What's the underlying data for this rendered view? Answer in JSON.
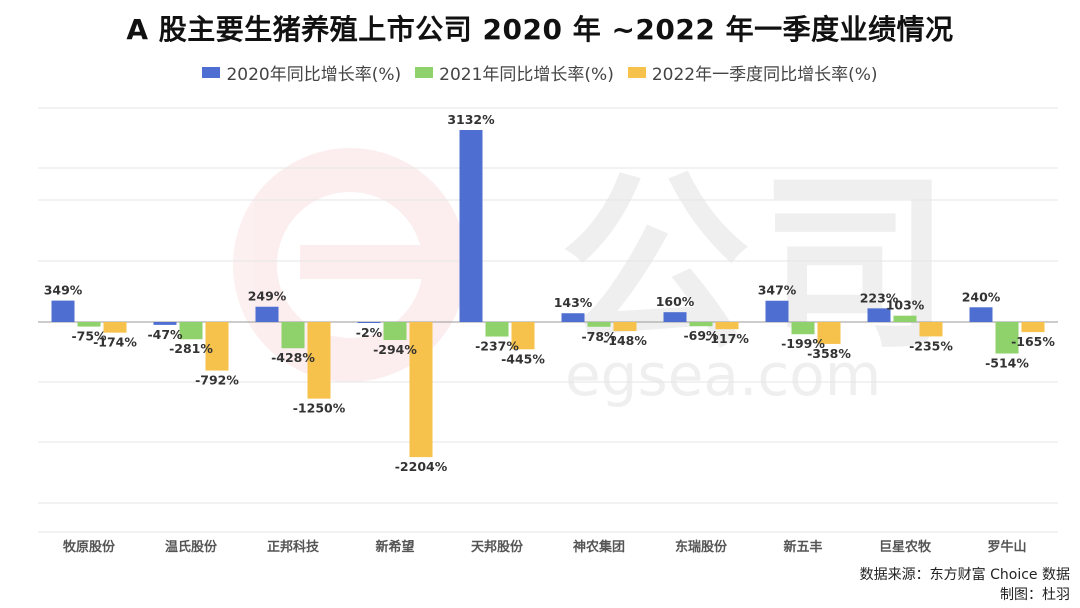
{
  "colors": {
    "s2020": "#4e6fd1",
    "s2021": "#8fd16a",
    "s2022": "#f7c24c"
  },
  "chart_data": {
    "type": "bar",
    "title": "A 股主要生猪养殖上市公司 2020 年 ~2022 年一季度业绩情况",
    "categories": [
      "牧原股份",
      "温氏股份",
      "正邦科技",
      "新希望",
      "天邦股份",
      "神农集团",
      "东瑞股份",
      "新五丰",
      "巨星农牧",
      "罗牛山"
    ],
    "series": [
      {
        "name": "2020年同比增长率(%)",
        "values": [
          349,
          -47,
          249,
          -2,
          3132,
          143,
          160,
          347,
          223,
          240
        ]
      },
      {
        "name": "2021年同比增长率(%)",
        "values": [
          -75,
          -281,
          -428,
          -294,
          -237,
          -78,
          -69,
          -199,
          103,
          -514
        ]
      },
      {
        "name": "2022年一季度同比增长率(%)",
        "values": [
          -174,
          -792,
          -1250,
          -2204,
          -445,
          -148,
          -117,
          -358,
          -235,
          -165
        ]
      }
    ],
    "labels": [
      [
        "349%",
        "-47%",
        "249%",
        "-2%",
        "3132%",
        "143%",
        "160%",
        "347%",
        "223%",
        "240%"
      ],
      [
        "-75%",
        "-281%",
        "-428%",
        "-294%",
        "-237%",
        "-78%",
        "-69%",
        "-199%",
        "103%",
        "-514%"
      ],
      [
        "-174%",
        "-792%",
        "-1250%",
        "-2204%",
        "-445%",
        "-148%",
        "-117%",
        "-358%",
        "-235%",
        "-165%"
      ]
    ],
    "ylim": [
      -3500,
      3500
    ],
    "grid": true,
    "legend": "top"
  },
  "footer": {
    "source": "数据来源：东方财富 Choice 数据",
    "author": "制图：杜羽"
  }
}
